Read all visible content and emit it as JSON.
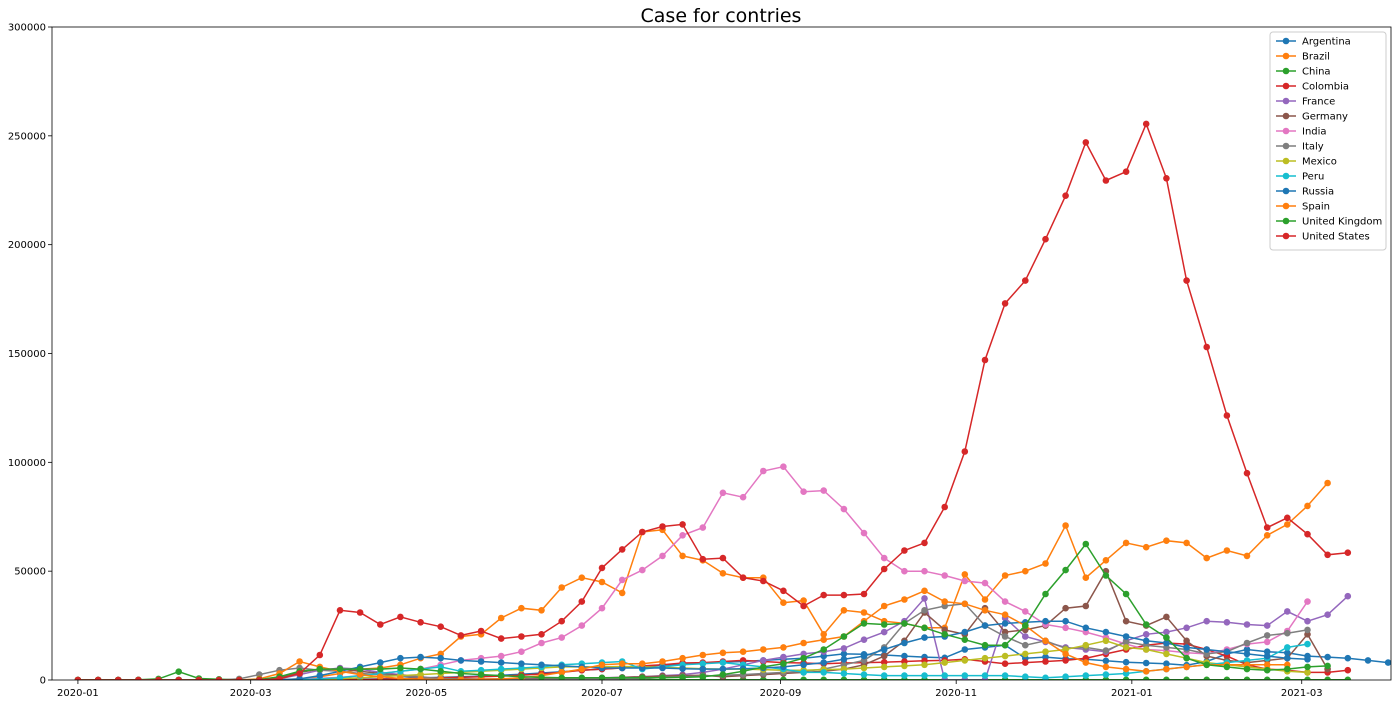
{
  "chart_data": {
    "type": "line",
    "title": "Case for contries",
    "xlabel": "",
    "ylabel": "",
    "ylim": [
      0,
      300000
    ],
    "xlim": [
      "2019-12-23",
      "2021-04-01"
    ],
    "yticks": [
      0,
      50000,
      100000,
      150000,
      200000,
      250000,
      300000
    ],
    "xticks": [
      "2020-01",
      "2020-03",
      "2020-05",
      "2020-07",
      "2020-09",
      "2020-11",
      "2021-01",
      "2021-03"
    ],
    "grid": false,
    "legend_position": "top-right",
    "x_start": "2020-01-01",
    "x_step_days": 7,
    "series": [
      {
        "name": "Argentina",
        "color": "#1f77b4",
        "values": [
          0,
          0,
          0,
          0,
          0,
          0,
          0,
          0,
          0,
          0,
          0,
          0,
          0,
          100,
          300,
          500,
          700,
          1000,
          1200,
          1500,
          1800,
          2200,
          2600,
          3200,
          3800,
          4500,
          5000,
          5600,
          6200,
          6800,
          7200,
          7800,
          8200,
          8500,
          9000,
          9500,
          10000,
          11000,
          12000,
          11800,
          11500,
          11000,
          10500,
          10200,
          14000,
          15000,
          16000,
          10000,
          10500,
          9800,
          9500,
          8800,
          8200,
          7800,
          7500,
          6800,
          8500,
          12000,
          14000,
          13000,
          12500,
          11000,
          10500,
          10000,
          9000,
          8000,
          7500,
          7800,
          8200,
          8500
        ]
      },
      {
        "name": "Brazil",
        "color": "#ff7f0e",
        "values": [
          0,
          0,
          0,
          0,
          0,
          0,
          0,
          0,
          0,
          0,
          100,
          500,
          1500,
          3000,
          5000,
          5500,
          7000,
          10000,
          12000,
          20000,
          21000,
          28500,
          33000,
          32000,
          42500,
          47000,
          45000,
          40000,
          68000,
          69000,
          57000,
          55000,
          49000,
          47000,
          47000,
          35500,
          36500,
          21000,
          32000,
          31000,
          27000,
          26000,
          24000,
          24000,
          48500,
          37000,
          48000,
          50000,
          53500,
          71000,
          47000,
          55000,
          63000,
          61000,
          64000,
          63000,
          56000,
          59500,
          57000,
          66500,
          71500,
          80000,
          90500
        ]
      },
      {
        "name": "China",
        "color": "#2ca02c",
        "values": [
          0,
          0,
          0,
          100,
          500,
          3800,
          700,
          300,
          100,
          100,
          100,
          100,
          100,
          100,
          100,
          100,
          100,
          100,
          100,
          100,
          100,
          100,
          100,
          100,
          100,
          100,
          100,
          100,
          100,
          100,
          100,
          100,
          100,
          100,
          100,
          100,
          100,
          100,
          100,
          100,
          100,
          100,
          100,
          100,
          100,
          100,
          100,
          100,
          100,
          100,
          100,
          100,
          100,
          100,
          100,
          100,
          100,
          100,
          100,
          100,
          100,
          100,
          100,
          100
        ]
      },
      {
        "name": "Colombia",
        "color": "#d62728",
        "values": [
          0,
          0,
          0,
          0,
          0,
          0,
          0,
          0,
          0,
          0,
          0,
          0,
          0,
          100,
          200,
          300,
          500,
          800,
          1000,
          1200,
          1500,
          1800,
          2200,
          2800,
          3500,
          4500,
          5000,
          5500,
          6500,
          7000,
          7800,
          8000,
          8500,
          9000,
          8500,
          8000,
          7800,
          7500,
          7800,
          8000,
          8200,
          8500,
          8800,
          9000,
          9500,
          8500,
          7500,
          8000,
          8500,
          9000,
          10000,
          12000,
          14000,
          16000,
          17000,
          16500,
          14000,
          11000,
          7000,
          5000,
          4500,
          3500,
          3500,
          4500
        ]
      },
      {
        "name": "France",
        "color": "#9467bd",
        "values": [
          0,
          0,
          0,
          0,
          0,
          0,
          0,
          0,
          0,
          100,
          600,
          2500,
          4500,
          5500,
          5000,
          3500,
          2500,
          1500,
          500,
          500,
          400,
          500,
          600,
          700,
          800,
          900,
          1000,
          1200,
          1500,
          2000,
          2500,
          3500,
          5000,
          7000,
          9000,
          10500,
          12000,
          13000,
          14500,
          18500,
          22000,
          27000,
          37500,
          0,
          0,
          0,
          28500,
          20000,
          17500,
          15000,
          14000,
          13000,
          18000,
          21000,
          22000,
          24000,
          27000,
          26500,
          25500,
          25000,
          31500,
          27000,
          30000,
          38500
        ]
      },
      {
        "name": "Germany",
        "color": "#8c564b",
        "values": [
          0,
          0,
          0,
          0,
          0,
          0,
          0,
          0,
          0,
          100,
          1000,
          3500,
          5000,
          5000,
          4000,
          3000,
          2000,
          1200,
          700,
          500,
          400,
          400,
          500,
          600,
          700,
          800,
          900,
          1200,
          1500,
          1800,
          2000,
          2200,
          1500,
          2000,
          2500,
          3000,
          3500,
          4000,
          5000,
          7000,
          11000,
          18000,
          31000,
          23000,
          21000,
          33000,
          22000,
          23000,
          25000,
          33000,
          34000,
          50000,
          27000,
          25000,
          29000,
          18000,
          11000,
          9000,
          8000,
          9000,
          10000,
          21000,
          5000
        ]
      },
      {
        "name": "India",
        "color": "#e377c2",
        "values": [
          0,
          0,
          0,
          0,
          0,
          0,
          0,
          0,
          0,
          0,
          100,
          300,
          800,
          1200,
          2000,
          3000,
          4000,
          5000,
          7000,
          9000,
          10000,
          11000,
          13000,
          17000,
          19500,
          25000,
          33000,
          46000,
          50500,
          57000,
          66500,
          70000,
          86000,
          84000,
          96000,
          98000,
          86500,
          87000,
          78500,
          67500,
          56000,
          50000,
          50000,
          48000,
          45500,
          44500,
          36000,
          31500,
          25500,
          24000,
          22000,
          19500,
          16500,
          14000,
          13500,
          12500,
          12000,
          14000,
          16500,
          17500,
          22500,
          36000
        ]
      },
      {
        "name": "Italy",
        "color": "#7f7f7f",
        "values": [
          0,
          0,
          0,
          0,
          0,
          0,
          0,
          0,
          500,
          2500,
          4500,
          5500,
          4500,
          4000,
          3000,
          2500,
          1800,
          1200,
          700,
          400,
          300,
          300,
          300,
          300,
          300,
          300,
          300,
          400,
          600,
          1200,
          1500,
          1800,
          2200,
          2500,
          3000,
          3500,
          4000,
          5000,
          7000,
          9000,
          15000,
          26000,
          32000,
          34000,
          35000,
          25000,
          20000,
          16000,
          18000,
          14500,
          15000,
          13500,
          17500,
          16000,
          15000,
          14000,
          12000,
          13000,
          17000,
          20500,
          21500,
          23000
        ]
      },
      {
        "name": "Mexico",
        "color": "#bcbd22",
        "values": [
          0,
          0,
          0,
          0,
          0,
          0,
          0,
          0,
          0,
          0,
          0,
          100,
          300,
          600,
          1000,
          1500,
          2000,
          2500,
          3000,
          3500,
          4000,
          4500,
          5000,
          5500,
          6000,
          6000,
          6000,
          6200,
          6000,
          5800,
          5500,
          5200,
          5000,
          5000,
          4800,
          4500,
          4500,
          4800,
          5000,
          5500,
          6000,
          6500,
          7000,
          8000,
          9000,
          10000,
          11000,
          12000,
          13000,
          14000,
          16000,
          18000,
          15000,
          14000,
          12000,
          10000,
          8000,
          7000,
          6000,
          5000,
          4000,
          3500
        ]
      },
      {
        "name": "Peru",
        "color": "#17becf",
        "values": [
          0,
          0,
          0,
          0,
          0,
          0,
          0,
          0,
          0,
          0,
          0,
          100,
          500,
          1000,
          2000,
          3000,
          4000,
          5000,
          6000,
          4000,
          4500,
          5000,
          5500,
          6000,
          7000,
          7500,
          8000,
          8500,
          5000,
          6000,
          7000,
          7500,
          8000,
          7000,
          6000,
          5000,
          3500,
          3500,
          3000,
          2500,
          2000,
          2000,
          2000,
          2000,
          2000,
          2000,
          2000,
          1500,
          1000,
          1500,
          2000,
          2500,
          3000,
          4000,
          5000,
          6000,
          7000,
          8000,
          9000,
          10000,
          15000,
          16500
        ]
      },
      {
        "name": "Russia",
        "color": "#1f77b4",
        "values": [
          0,
          0,
          0,
          0,
          0,
          0,
          0,
          0,
          0,
          0,
          100,
          500,
          2000,
          4000,
          6000,
          8000,
          10000,
          10500,
          10000,
          9000,
          8500,
          8000,
          7500,
          7000,
          6500,
          6000,
          5500,
          5500,
          5500,
          5500,
          5200,
          5000,
          5000,
          5200,
          5500,
          6000,
          7000,
          8000,
          9500,
          11000,
          14000,
          17000,
          19500,
          20000,
          22000,
          25000,
          26000,
          26500,
          27000,
          27000,
          24000,
          22000,
          20000,
          18000,
          17000,
          15000,
          14000,
          13000,
          12000,
          11000,
          10000,
          9500
        ]
      },
      {
        "name": "Spain",
        "color": "#ff7f0e",
        "values": [
          0,
          0,
          0,
          0,
          0,
          0,
          0,
          0,
          0,
          500,
          3000,
          8500,
          6000,
          4000,
          2500,
          1500,
          700,
          300,
          200,
          200,
          300,
          500,
          1000,
          2000,
          3500,
          5000,
          7000,
          7500,
          7500,
          8500,
          10000,
          11500,
          12500,
          13000,
          14000,
          15000,
          17000,
          18500,
          20000,
          27000,
          34000,
          37000,
          41000,
          36000,
          35000,
          32000,
          30000,
          25000,
          18000,
          12000,
          8000,
          6000,
          5000,
          4000,
          5000,
          6000,
          7000,
          7000,
          7000,
          7000,
          7000
        ]
      },
      {
        "name": "United Kingdom",
        "color": "#2ca02c",
        "values": [
          0,
          0,
          0,
          0,
          0,
          0,
          0,
          0,
          0,
          200,
          1500,
          4000,
          5000,
          5000,
          5000,
          5000,
          5500,
          5000,
          4000,
          3000,
          2500,
          2000,
          1500,
          1200,
          1000,
          1000,
          1000,
          1000,
          1000,
          1000,
          1200,
          1500,
          2500,
          4000,
          6000,
          7500,
          10000,
          14000,
          20000,
          26000,
          25500,
          26000,
          24000,
          21000,
          18500,
          16000,
          16000,
          25000,
          39500,
          50500,
          62500,
          48000,
          39500,
          25500,
          19500,
          10000,
          7000,
          6000,
          5000,
          4500,
          5000,
          6000,
          6500
        ]
      },
      {
        "name": "United States",
        "color": "#d62728",
        "values": [
          0,
          0,
          0,
          0,
          0,
          0,
          0,
          0,
          0,
          0,
          500,
          3000,
          11500,
          32000,
          31000,
          25500,
          29000,
          26500,
          24500,
          20500,
          22500,
          19000,
          20000,
          21000,
          27000,
          36000,
          51500,
          60000,
          68000,
          70500,
          71500,
          55500,
          56000,
          47000,
          45500,
          41000,
          34000,
          39000,
          39000,
          39500,
          51000,
          59500,
          63000,
          79500,
          105000,
          147000,
          173000,
          183500,
          202500,
          222500,
          247000,
          229500,
          233500,
          255500,
          230500,
          183500,
          153000,
          121500,
          95000,
          70000,
          74500,
          67000,
          57500,
          58500
        ]
      }
    ]
  }
}
